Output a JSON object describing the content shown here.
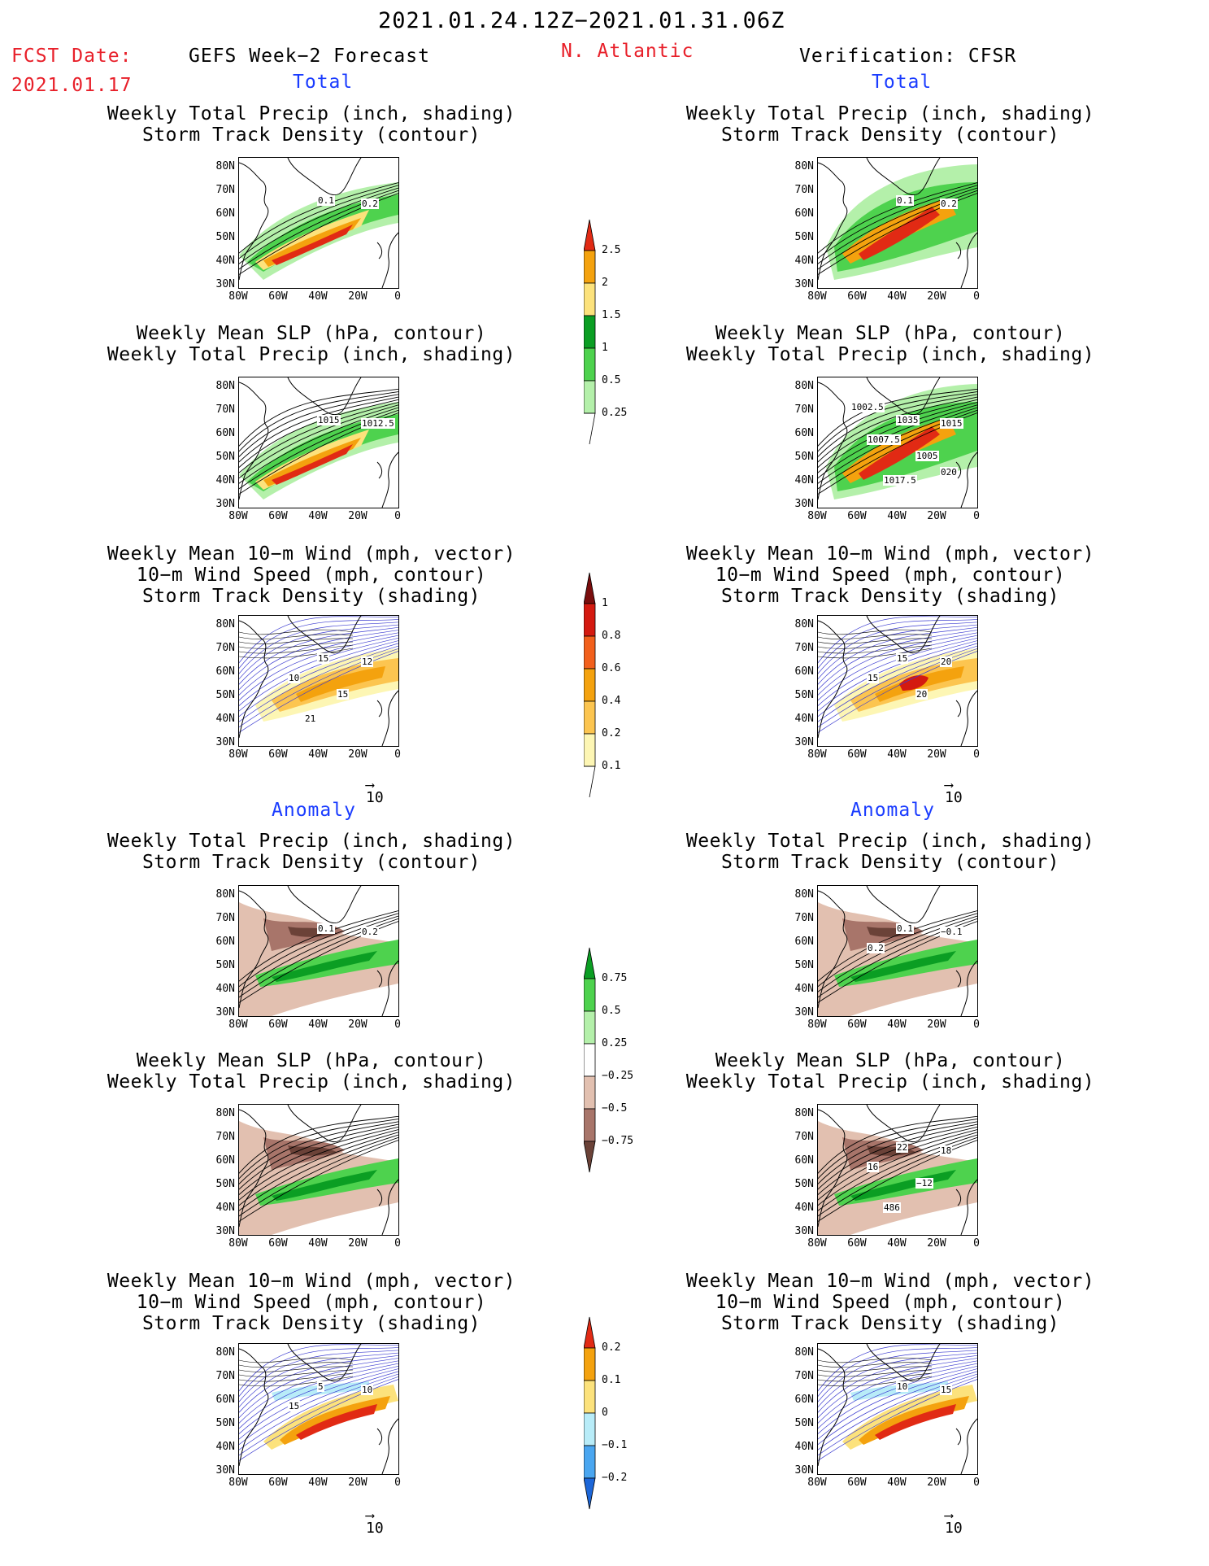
{
  "header": {
    "date_range": "2021.01.24.12Z−2021.01.31.06Z",
    "fcst_label": "FCST Date:",
    "fcst_date": "2021.01.17",
    "left_title": "GEFS Week−2 Forecast",
    "region": "N. Atlantic",
    "right_title": "Verification: CFSR"
  },
  "sections": {
    "total": "Total",
    "anomaly": "Anomaly"
  },
  "panel_titles": {
    "precip_track": [
      "Weekly Total Precip (inch, shading)",
      "Storm Track Density (contour)"
    ],
    "slp_precip": [
      "Weekly Mean SLP (hPa, contour)",
      "Weekly Total Precip (inch, shading)"
    ],
    "wind_track": [
      "Weekly Mean 10−m Wind (mph, vector)",
      "10−m Wind Speed (mph, contour)",
      "Storm Track Density (shading)"
    ]
  },
  "axes": {
    "lat": [
      "80N",
      "70N",
      "60N",
      "50N",
      "40N",
      "30N"
    ],
    "lon": [
      "80W",
      "60W",
      "40W",
      "20W",
      "0"
    ]
  },
  "vector_ref": "10",
  "colorbars": {
    "precip_total": [
      "2.5",
      "2",
      "1.5",
      "1",
      "0.5",
      "0.25"
    ],
    "track_total": [
      "1",
      "0.8",
      "0.6",
      "0.4",
      "0.2",
      "0.1"
    ],
    "precip_anom": [
      "0.75",
      "0.5",
      "0.25",
      "−0.25",
      "−0.5",
      "−0.75"
    ],
    "track_anom": [
      "0.2",
      "0.1",
      "0",
      "−0.1",
      "−0.2"
    ]
  },
  "contour_labels": {
    "gefs_precip_total": [
      "0.1",
      "0.2"
    ],
    "cfsr_precip_total": [
      "0.1",
      "0.2"
    ],
    "gefs_slp_total": [
      "1015",
      "1012.5"
    ],
    "cfsr_slp_total": [
      "1035",
      "1015",
      "1007.5",
      "1005",
      "1017.5",
      "1002.5",
      "020"
    ],
    "gefs_wind_total": [
      "15",
      "12",
      "10",
      "15",
      "21"
    ],
    "cfsr_wind_total": [
      "15",
      "20",
      "15",
      "20"
    ],
    "gefs_precip_anom": [
      "0.1",
      "0.2"
    ],
    "cfsr_precip_anom": [
      "0.1",
      "−0.1",
      "0.2"
    ],
    "cfsr_slp_anom": [
      "22",
      "18",
      "16",
      "−12",
      "486"
    ],
    "gefs_wind_anom": [
      "5",
      "10",
      "15"
    ],
    "cfsr_wind_anom": [
      "10",
      "15"
    ]
  },
  "colors": {
    "title_red": "#e8202a",
    "section_blue": "#1a3cff",
    "precip_light_green": "#b4f0aa",
    "precip_green": "#4ed24e",
    "precip_dark_green": "#0b9e23",
    "precip_yellow": "#fce27c",
    "precip_orange": "#f4a20e",
    "precip_red": "#e12a14",
    "anom_brown_light": "#e2c0b0",
    "anom_brown": "#a8756a",
    "anom_brown_dark": "#6b4238",
    "anom_blue_light": "#b8ecf8",
    "anom_blue": "#4aa6f0",
    "anom_blue_dark": "#1c66d8",
    "wind_contour": "#3c3cd0"
  }
}
